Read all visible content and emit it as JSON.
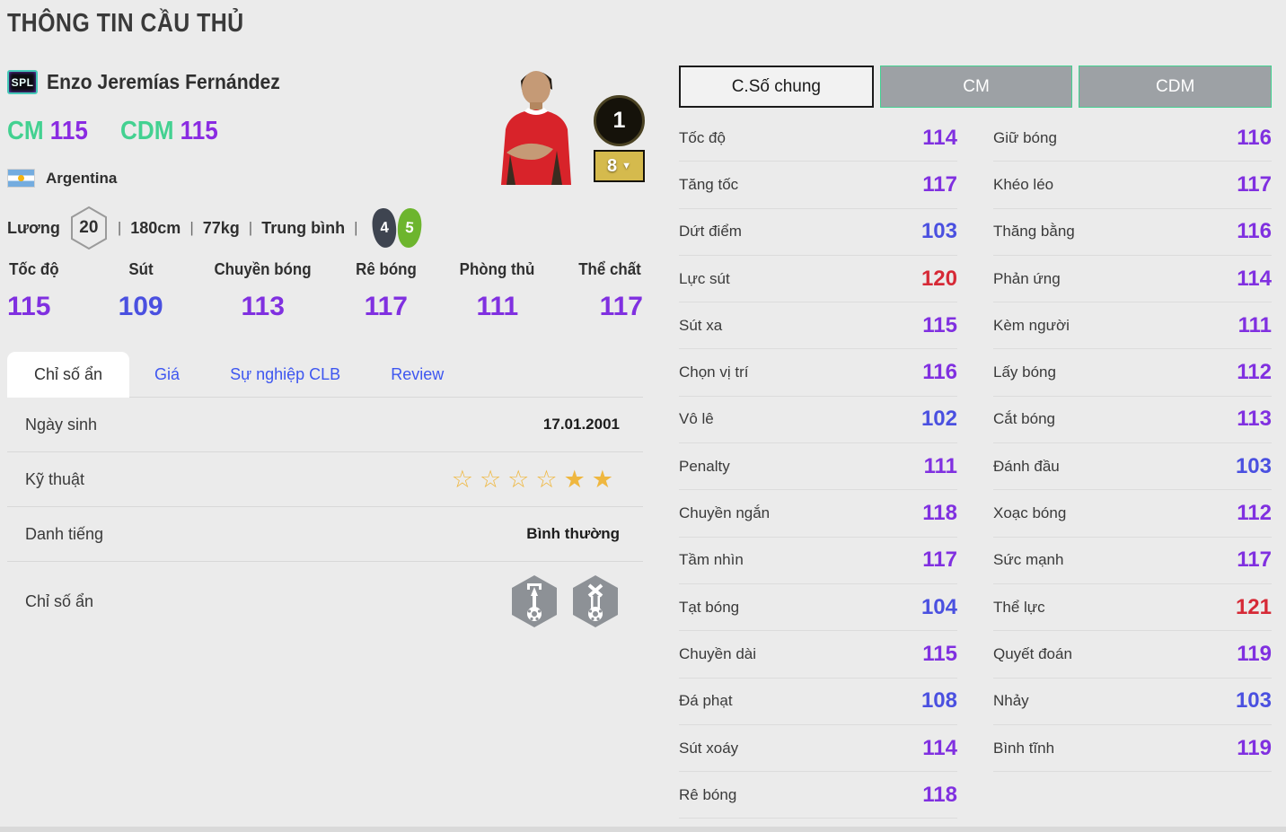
{
  "page": {
    "title": "THÔNG TIN CẦU THỦ"
  },
  "player": {
    "badge": "SPL",
    "name": "Enzo Jeremías Fernández",
    "positions": [
      {
        "label": "CM",
        "value": "115"
      },
      {
        "label": "CDM",
        "value": "115"
      }
    ],
    "nation": "Argentina",
    "salary_label": "Lương",
    "salary": "20",
    "height": "180cm",
    "weight": "77kg",
    "body_type": "Trung bình",
    "separator": "|",
    "weak_foot": "4",
    "strong_foot": "5",
    "level_badge": "1",
    "enhance_level": "8"
  },
  "summary_stats": [
    {
      "label": "Tốc độ",
      "value": "115"
    },
    {
      "label": "Sút",
      "value": "109"
    },
    {
      "label": "Chuyền bóng",
      "value": "113"
    },
    {
      "label": "Rê bóng",
      "value": "117"
    },
    {
      "label": "Phòng thủ",
      "value": "111"
    },
    {
      "label": "Thể chất",
      "value": "117"
    }
  ],
  "tabs": [
    {
      "label": "Chỉ số ẩn",
      "active": true
    },
    {
      "label": "Giá",
      "active": false
    },
    {
      "label": "Sự nghiệp CLB",
      "active": false
    },
    {
      "label": "Review",
      "active": false
    }
  ],
  "info_rows": [
    {
      "label": "Ngày sinh",
      "type": "text",
      "value": "17.01.2001"
    },
    {
      "label": "Kỹ thuật",
      "type": "stars",
      "stars_outline": 4,
      "stars_filled": 2
    },
    {
      "label": "Danh tiếng",
      "type": "text",
      "value": "Bình thường"
    },
    {
      "label": "Chỉ số ẩn",
      "type": "traits",
      "trait_icons": [
        "trait-ball-arrow-icon",
        "trait-ball-cross-icon"
      ]
    }
  ],
  "panel": {
    "buttons": [
      {
        "label": "C.Số chung",
        "variant": "light"
      },
      {
        "label": "CM",
        "variant": "gray"
      },
      {
        "label": "CDM",
        "variant": "gray"
      }
    ],
    "left_stats": [
      {
        "label": "Tốc độ",
        "value": "114"
      },
      {
        "label": "Tăng tốc",
        "value": "117"
      },
      {
        "label": "Dứt điểm",
        "value": "103"
      },
      {
        "label": "Lực sút",
        "value": "120"
      },
      {
        "label": "Sút xa",
        "value": "115"
      },
      {
        "label": "Chọn vị trí",
        "value": "116"
      },
      {
        "label": "Vô lê",
        "value": "102"
      },
      {
        "label": "Penalty",
        "value": "111"
      },
      {
        "label": "Chuyền ngắn",
        "value": "118"
      },
      {
        "label": "Tầm nhìn",
        "value": "117"
      },
      {
        "label": "Tạt bóng",
        "value": "104"
      },
      {
        "label": "Chuyền dài",
        "value": "115"
      },
      {
        "label": "Đá phạt",
        "value": "108"
      },
      {
        "label": "Sút xoáy",
        "value": "114"
      },
      {
        "label": "Rê bóng",
        "value": "118"
      }
    ],
    "right_stats": [
      {
        "label": "Giữ bóng",
        "value": "116"
      },
      {
        "label": "Khéo léo",
        "value": "117"
      },
      {
        "label": "Thăng bằng",
        "value": "116"
      },
      {
        "label": "Phản ứng",
        "value": "114"
      },
      {
        "label": "Kèm người",
        "value": "111"
      },
      {
        "label": "Lấy bóng",
        "value": "112"
      },
      {
        "label": "Cắt bóng",
        "value": "113"
      },
      {
        "label": "Đánh đầu",
        "value": "103"
      },
      {
        "label": "Xoạc bóng",
        "value": "112"
      },
      {
        "label": "Sức mạnh",
        "value": "117"
      },
      {
        "label": "Thể lực",
        "value": "121"
      },
      {
        "label": "Quyết đoán",
        "value": "119"
      },
      {
        "label": "Nhảy",
        "value": "103"
      },
      {
        "label": "Bình tĩnh",
        "value": "119"
      }
    ]
  },
  "icons": {
    "dropdown": "▼",
    "star_filled": "★",
    "star_outline": "☆"
  },
  "colors": {
    "value_purple": "#8030e0",
    "value_blue": "#4a50e0",
    "value_red": "#d62936",
    "accent_green": "#43d191",
    "tab_blue": "#3d56f0",
    "star_gold": "#efb73f",
    "badge_gold": "#d5ba4d",
    "foot_dark": "#3e4450",
    "foot_green": "#6db52e"
  }
}
